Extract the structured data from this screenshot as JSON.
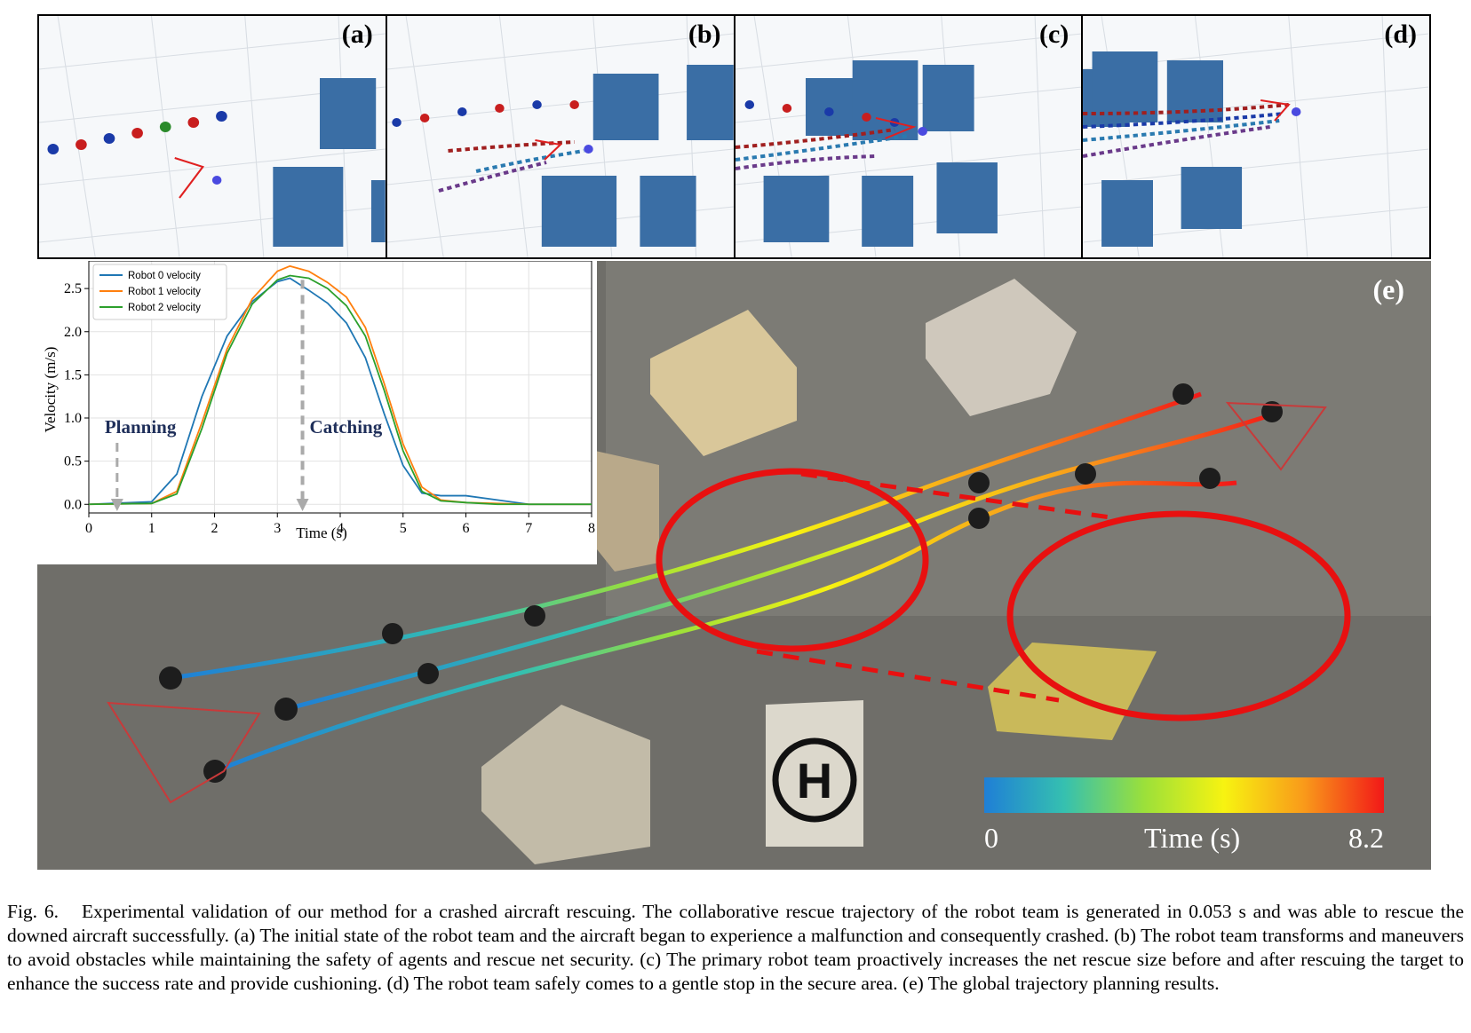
{
  "panels": [
    {
      "label": "(a)"
    },
    {
      "label": "(b)"
    },
    {
      "label": "(c)"
    },
    {
      "label": "(d)"
    }
  ],
  "photo": {
    "label": "(e)"
  },
  "colorbar": {
    "min": "0",
    "max": "8.2",
    "title": "Time (s)"
  },
  "chart_data": {
    "type": "line",
    "xlabel": "Time (s)",
    "ylabel": "Velocity (m/s)",
    "xlim": [
      0,
      8
    ],
    "ylim": [
      -0.1,
      2.82
    ],
    "xticks": [
      "0",
      "1",
      "2",
      "3",
      "4",
      "5",
      "6",
      "7",
      "8"
    ],
    "yticks": [
      "0.0",
      "0.5",
      "1.0",
      "1.5",
      "2.0",
      "2.5"
    ],
    "grid": true,
    "legend_position": "top-left",
    "colors": {
      "robot0": "#1f77b4",
      "robot1": "#ff7f0e",
      "robot2": "#2ca02c"
    },
    "series": [
      {
        "name": "Robot 0 velocity",
        "x": [
          0,
          1.0,
          1.4,
          1.8,
          2.2,
          2.6,
          3.0,
          3.2,
          3.5,
          3.8,
          4.1,
          4.4,
          4.7,
          5.0,
          5.3,
          5.6,
          6.0,
          6.5,
          7.0,
          8.0
        ],
        "y": [
          0,
          0.03,
          0.35,
          1.25,
          1.95,
          2.35,
          2.58,
          2.62,
          2.48,
          2.33,
          2.1,
          1.7,
          1.05,
          0.45,
          0.13,
          0.1,
          0.1,
          0.05,
          0.0,
          0.0
        ]
      },
      {
        "name": "Robot 1 velocity",
        "x": [
          0,
          1.0,
          1.4,
          1.8,
          2.2,
          2.6,
          3.0,
          3.2,
          3.5,
          3.8,
          4.1,
          4.4,
          4.7,
          5.0,
          5.3,
          5.6,
          6.0,
          6.5,
          7.0,
          8.0
        ],
        "y": [
          0,
          0.01,
          0.15,
          0.95,
          1.8,
          2.38,
          2.7,
          2.76,
          2.7,
          2.57,
          2.4,
          2.05,
          1.4,
          0.7,
          0.2,
          0.05,
          0.02,
          0.01,
          0.0,
          0.0
        ]
      },
      {
        "name": "Robot 2 velocity",
        "x": [
          0,
          1.0,
          1.4,
          1.8,
          2.2,
          2.6,
          3.0,
          3.2,
          3.5,
          3.8,
          4.1,
          4.4,
          4.7,
          5.0,
          5.3,
          5.6,
          6.0,
          6.5,
          7.0,
          8.0
        ],
        "y": [
          0,
          0.01,
          0.12,
          0.88,
          1.75,
          2.32,
          2.6,
          2.65,
          2.62,
          2.5,
          2.3,
          1.95,
          1.32,
          0.62,
          0.15,
          0.04,
          0.02,
          0.0,
          0.0,
          0.0
        ]
      }
    ],
    "annotations": [
      {
        "text": "Planning",
        "x": 0.45
      },
      {
        "text": "Catching",
        "x": 3.4
      }
    ]
  },
  "caption": {
    "label": "Fig. 6.",
    "text": "Experimental validation of our method for a crashed aircraft rescuing. The collaborative rescue trajectory of the robot team is generated in 0.053 s and was able to rescue the downed aircraft successfully. (a) The initial state of the robot team and the aircraft began to experience a malfunction and consequently crashed. (b) The robot team transforms and maneuvers to avoid obstacles while maintaining the safety of agents and rescue net security. (c) The primary robot team proactively increases the net rescue size before and after rescuing the target to enhance the success rate and provide cushioning. (d) The robot team safely comes to a gentle stop in the secure area. (e) The global trajectory planning results."
  }
}
